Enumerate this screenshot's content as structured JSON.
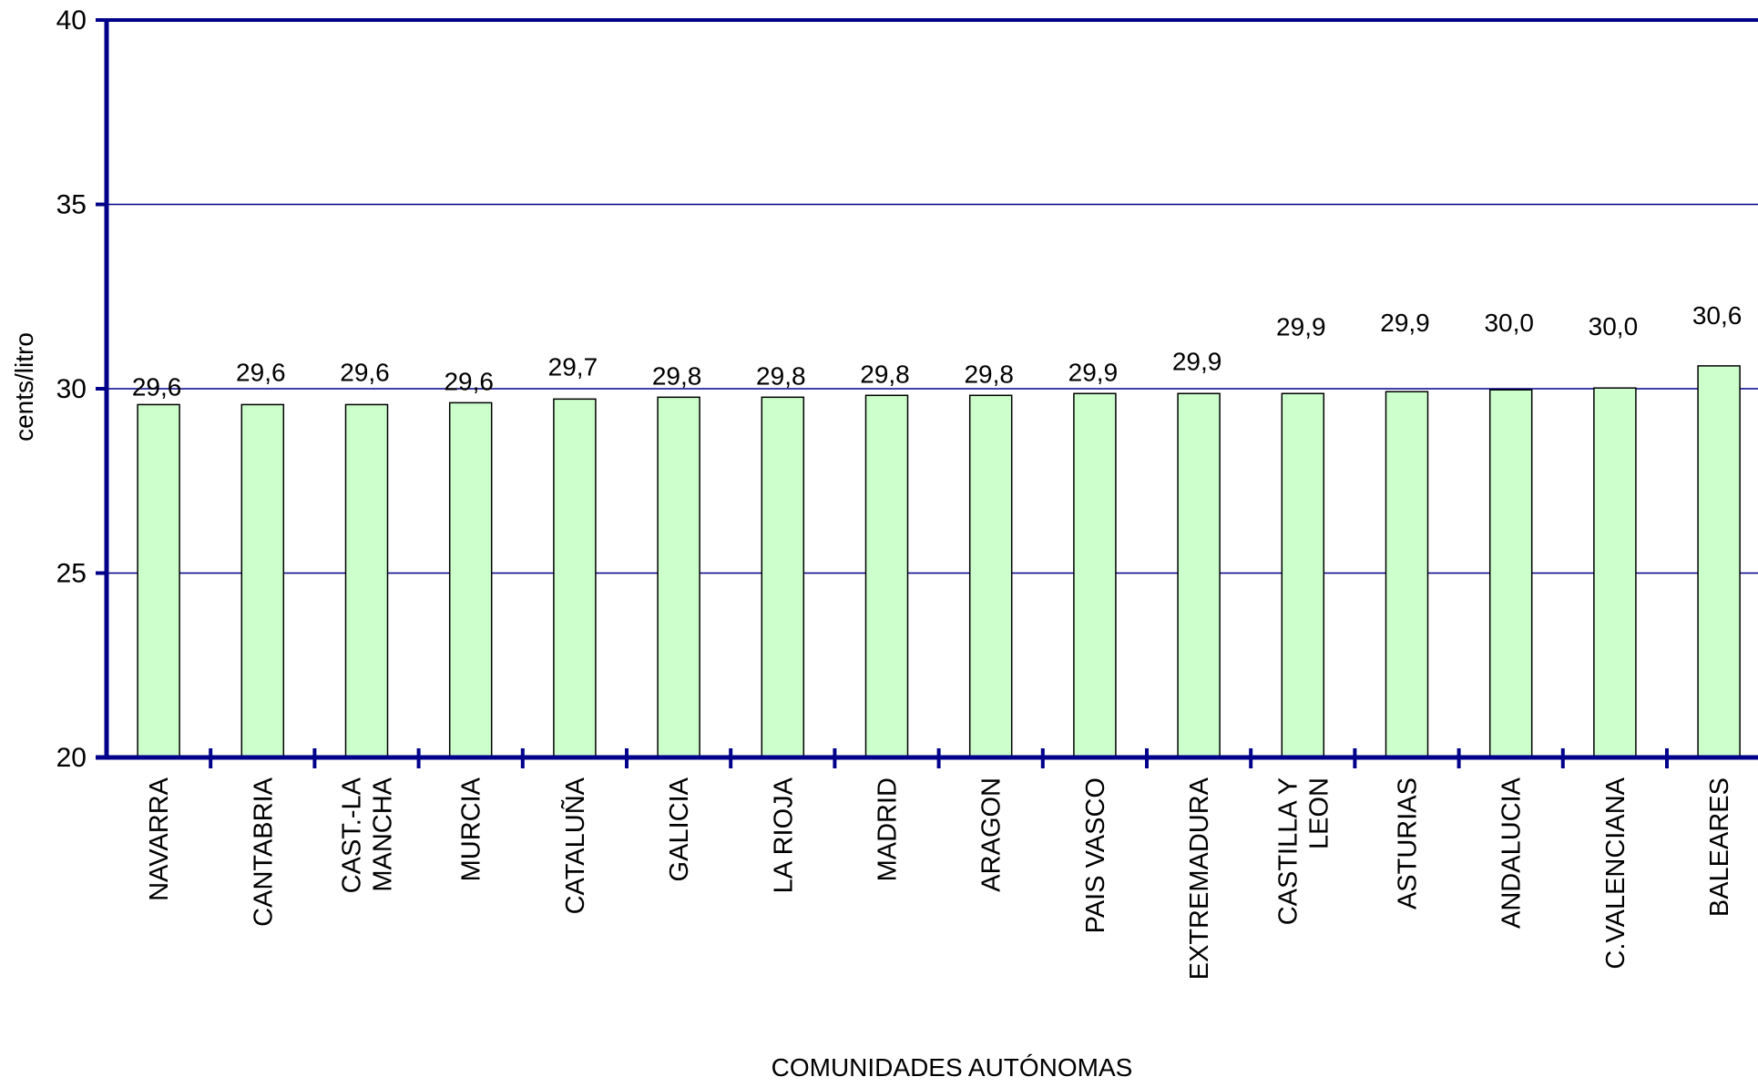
{
  "colors": {
    "axis": "#00008B",
    "grid": "#00008B",
    "bar_fill": "#CCFFCC",
    "bar_stroke": "#000000",
    "text": "#000000"
  },
  "chart_data": {
    "type": "bar",
    "title": "",
    "xlabel": "COMUNIDADES AUTÓNOMAS",
    "ylabel": "cents/litro",
    "ylim": [
      20,
      40
    ],
    "yticks": [
      "20",
      "25",
      "30",
      "35",
      "40"
    ],
    "grid": true,
    "legend": "none",
    "categories": [
      [
        "NAVARRA"
      ],
      [
        "CANTABRIA"
      ],
      [
        "CAST.-LA",
        "MANCHA"
      ],
      [
        "MURCIA"
      ],
      [
        "CATALUÑA"
      ],
      [
        "GALICIA"
      ],
      [
        "LA RIOJA"
      ],
      [
        "MADRID"
      ],
      [
        "ARAGON"
      ],
      [
        "PAIS VASCO"
      ],
      [
        "EXTREMADURA"
      ],
      [
        "CASTILLA Y",
        "LEON"
      ],
      [
        "ASTURIAS"
      ],
      [
        "ANDALUCIA"
      ],
      [
        "C.VALENCIANA"
      ],
      [
        "BALEARES"
      ]
    ],
    "values": [
      29.57,
      29.57,
      29.57,
      29.62,
      29.72,
      29.77,
      29.77,
      29.82,
      29.82,
      29.87,
      29.87,
      29.87,
      29.92,
      29.97,
      30.02,
      30.62
    ],
    "data_labels": [
      "29,6",
      "29,6",
      "29,6",
      "29,6",
      "29,7",
      "29,8",
      "29,8",
      "29,8",
      "29,8",
      "29,9",
      "29,9",
      "29,9",
      "29,9",
      "30,0",
      "30,0",
      "30,6"
    ]
  }
}
